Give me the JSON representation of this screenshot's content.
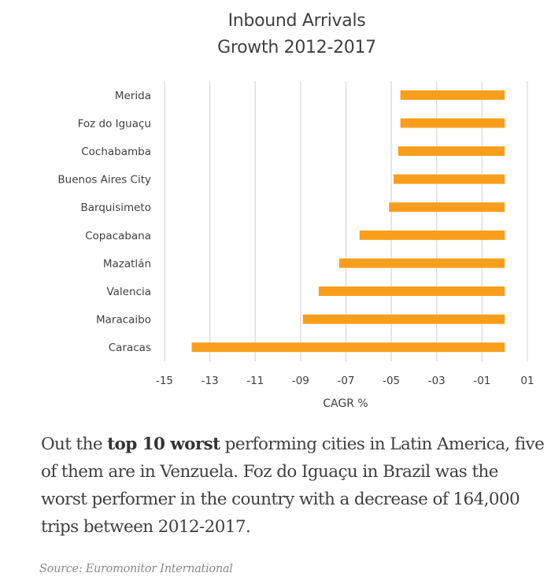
{
  "chart_data": {
    "type": "bar",
    "orientation": "horizontal",
    "title": [
      "Inbound Arrivals",
      "Growth 2012-2017"
    ],
    "xlabel": "CAGR %",
    "ylabel": "",
    "categories": [
      "Merida",
      "Foz do Iguaçu",
      "Cochabamba",
      "Buenos Aires City",
      "Barquisimeto",
      "Copacabana",
      "Mazatlán",
      "Valencia",
      "Maracaibo",
      "Caracas"
    ],
    "values": [
      -4.6,
      -4.6,
      -4.7,
      -4.9,
      -5.1,
      -6.4,
      -7.3,
      -8.2,
      -8.9,
      -13.8
    ],
    "xlim": [
      -15,
      1
    ],
    "x_ticks": [
      -15,
      -13,
      -11,
      -9,
      -7,
      -5,
      -3,
      -1,
      1
    ],
    "x_tick_labels": [
      "-15",
      "-13",
      "-11",
      "-09",
      "-07",
      "-05",
      "-03",
      "-01",
      "01"
    ],
    "grid": "vertical",
    "legend": "none",
    "bar_color": "#F99E1C"
  },
  "caption": {
    "prefix": "Out the ",
    "bold": "top 10 worst",
    "suffix": " performing cities in Latin America, five of them are in Venzuela. Foz do Iguaçu in Brazil was the worst performer in the country with a decrease of 164,000 trips between 2012-2017."
  },
  "source": "Source: Euromonitor International"
}
